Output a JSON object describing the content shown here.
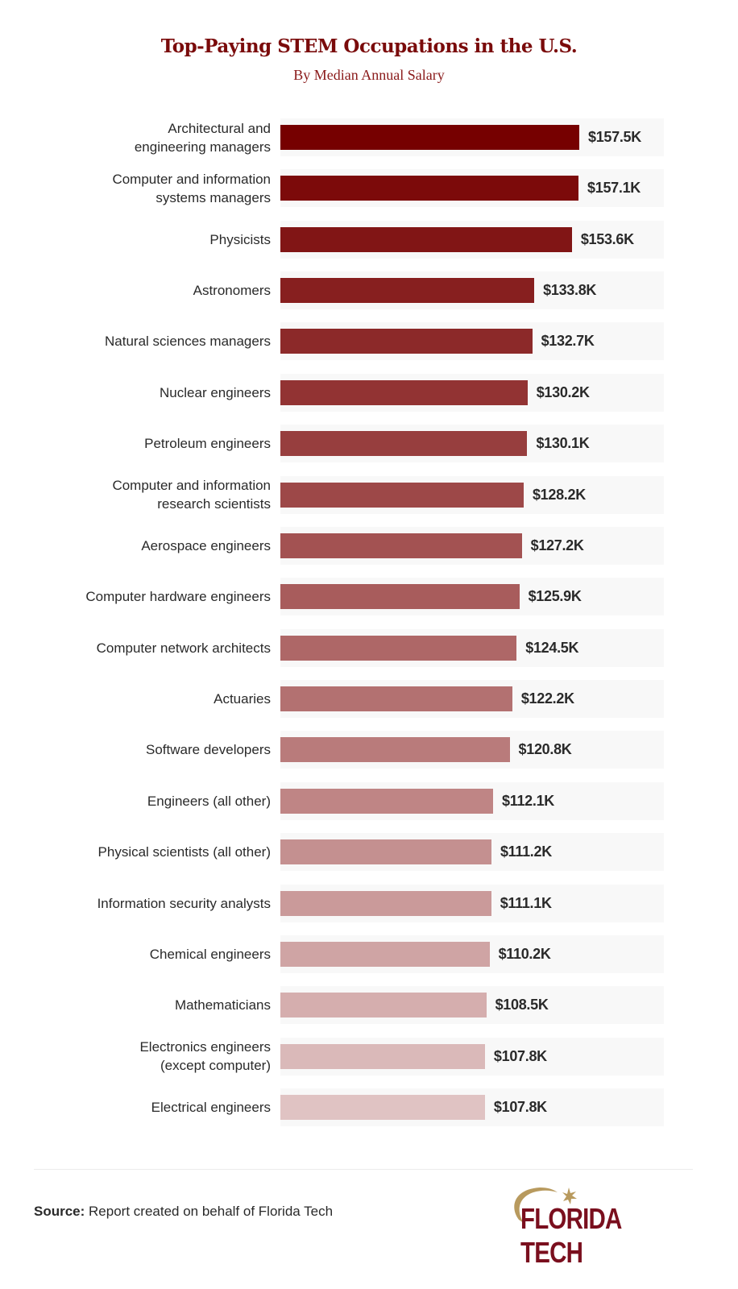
{
  "chart_data": {
    "type": "bar",
    "orientation": "horizontal",
    "title": "Top-Paying STEM Occupations in the U.S.",
    "subtitle": "By Median Annual Salary",
    "categories": [
      "Architectural and engineering managers",
      "Computer and information systems managers",
      "Physicists",
      "Astronomers",
      "Natural sciences managers",
      "Nuclear engineers",
      "Petroleum engineers",
      "Computer and information research scientists",
      "Aerospace engineers",
      "Computer hardware engineers",
      "Computer network architects",
      "Actuaries",
      "Software developers",
      "Engineers (all other)",
      "Physical scientists (all other)",
      "Information security analysts",
      "Chemical engineers",
      "Mathematicians",
      "Electronics engineers (except computer)",
      "Electrical engineers"
    ],
    "values": [
      157.5,
      157.1,
      153.6,
      133.8,
      132.7,
      130.2,
      130.1,
      128.2,
      127.2,
      125.9,
      124.5,
      122.2,
      120.8,
      112.1,
      111.2,
      111.1,
      110.2,
      108.5,
      107.8,
      107.8
    ],
    "data_labels": [
      "$157.5K",
      "$157.1K",
      "$153.6K",
      "$133.8K",
      "$132.7K",
      "$130.2K",
      "$130.1K",
      "$128.2K",
      "$127.2K",
      "$125.9K",
      "$124.5K",
      "$122.2K",
      "$120.8K",
      "$112.1K",
      "$111.2K",
      "$111.1K",
      "$110.2K",
      "$108.5K",
      "$107.8K",
      "$107.8K"
    ],
    "unit": "thousand USD",
    "xlim": [
      0,
      200
    ],
    "grid": false,
    "legend": "none",
    "colors": {
      "top": "#760000",
      "bottom": "#e0c3c3",
      "row_background": "#f8f8f8"
    }
  },
  "footer": {
    "source_label": "Source:",
    "source_text": "Report created on behalf of Florida Tech",
    "logo_text": "FLORIDA TECH"
  }
}
